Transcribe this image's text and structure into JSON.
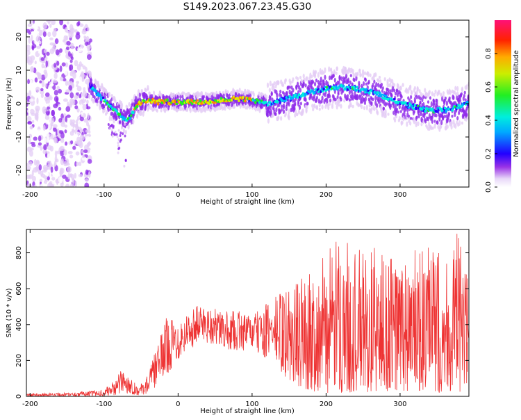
{
  "figure": {
    "title": "S149.2023.067.23.45.G30"
  },
  "chart_data": [
    {
      "type": "heatmap",
      "title": "",
      "xlabel": "Height of straight line (km)",
      "ylabel": "Frequency (Hz)",
      "xlim": [
        -205,
        393
      ],
      "ylim": [
        -25,
        25
      ],
      "xticks": [
        -200,
        -100,
        0,
        100,
        200,
        300
      ],
      "yticks": [
        -20,
        -10,
        0,
        10,
        20
      ],
      "colorbar": {
        "label": "Normalized spectral amplitude",
        "range": [
          0,
          1
        ],
        "ticks": [
          0.0,
          0.2,
          0.4,
          0.6,
          0.8
        ]
      },
      "ridge": {
        "x": [
          -120,
          -110,
          -100,
          -90,
          -80,
          -72,
          -65,
          -58,
          -50,
          -40,
          -30,
          -20,
          0,
          20,
          40,
          60,
          80,
          100,
          120,
          150,
          180,
          200,
          220,
          240,
          260,
          280,
          300,
          320,
          340,
          360,
          380,
          393
        ],
        "y": [
          6,
          3,
          1,
          -1,
          -3,
          -5,
          -4,
          -1,
          0.5,
          1,
          0.5,
          0.5,
          0.5,
          0.5,
          0.5,
          1,
          1.5,
          1,
          0,
          1.5,
          3.5,
          4.5,
          5,
          4.5,
          3.5,
          2,
          0,
          -1,
          -2,
          -2,
          -1,
          0
        ]
      },
      "grid": false
    },
    {
      "type": "line",
      "title": "",
      "xlabel": "Height of straight line (km)",
      "ylabel": "SNR (10 * v/v)",
      "xlim": [
        -205,
        393
      ],
      "ylim": [
        0,
        930
      ],
      "xticks": [
        -200,
        -100,
        0,
        100,
        200,
        300
      ],
      "yticks": [
        0,
        200,
        400,
        600,
        800
      ],
      "envelope": {
        "x": [
          -205,
          -150,
          -120,
          -100,
          -85,
          -75,
          -65,
          -55,
          -45,
          -35,
          -25,
          -15,
          0,
          15,
          30,
          45,
          60,
          80,
          100,
          120,
          140,
          160,
          180,
          200,
          220,
          240,
          260,
          280,
          300,
          320,
          340,
          360,
          380,
          393
        ],
        "low": [
          0,
          0,
          0,
          0,
          5,
          10,
          15,
          5,
          10,
          30,
          80,
          120,
          200,
          260,
          300,
          290,
          260,
          250,
          260,
          200,
          120,
          60,
          30,
          20,
          20,
          20,
          20,
          20,
          20,
          20,
          20,
          20,
          20,
          20
        ],
        "high": [
          15,
          20,
          30,
          40,
          90,
          160,
          110,
          60,
          80,
          200,
          320,
          450,
          420,
          480,
          520,
          500,
          470,
          480,
          450,
          520,
          600,
          650,
          720,
          800,
          900,
          820,
          850,
          820,
          800,
          820,
          830,
          850,
          920,
          650
        ]
      },
      "color": "#ee3333",
      "grid": false
    }
  ]
}
